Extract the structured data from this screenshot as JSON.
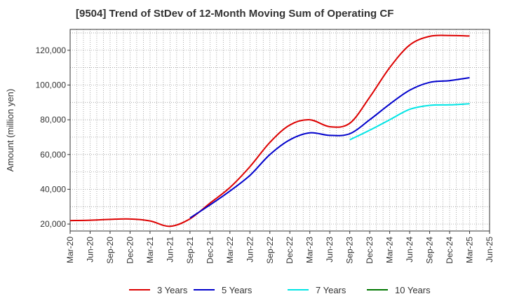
{
  "chart_data": {
    "type": "line",
    "title": "[9504]  Trend of StDev of 12-Month Moving Sum of Operating CF",
    "xlabel": "",
    "ylabel": "Amount (million yen)",
    "ylim": [
      16000,
      132000
    ],
    "yticks": [
      20000,
      40000,
      60000,
      80000,
      100000,
      120000
    ],
    "ytick_labels": [
      "20,000",
      "40,000",
      "60,000",
      "80,000",
      "100,000",
      "120,000"
    ],
    "x": [
      "Mar-20",
      "Jun-20",
      "Sep-20",
      "Dec-20",
      "Mar-21",
      "Jun-21",
      "Sep-21",
      "Dec-21",
      "Mar-22",
      "Jun-22",
      "Sep-22",
      "Dec-22",
      "Mar-23",
      "Jun-23",
      "Sep-23",
      "Dec-23",
      "Mar-24",
      "Jun-24",
      "Sep-24",
      "Dec-24",
      "Mar-25",
      "Jun-25"
    ],
    "grid": true,
    "legend_position": "bottom",
    "series": [
      {
        "name": "3 Years",
        "color": "#dd0000",
        "values": [
          22000,
          22200,
          22700,
          22900,
          21800,
          18700,
          23000,
          32000,
          41000,
          53000,
          67000,
          77000,
          80000,
          76000,
          78000,
          93000,
          110000,
          123000,
          128000,
          128500,
          128200,
          null
        ]
      },
      {
        "name": "5 Years",
        "color": "#0000cc",
        "values": [
          null,
          null,
          null,
          null,
          null,
          null,
          23500,
          31000,
          39000,
          48000,
          60000,
          68500,
          72500,
          71000,
          72000,
          80000,
          89000,
          97000,
          101500,
          102500,
          104200,
          null
        ]
      },
      {
        "name": "7 Years",
        "color": "#00e5e5",
        "values": [
          null,
          null,
          null,
          null,
          null,
          null,
          null,
          null,
          null,
          null,
          null,
          null,
          null,
          null,
          68500,
          74000,
          80000,
          86000,
          88300,
          88600,
          89200,
          null
        ]
      },
      {
        "name": "10 Years",
        "color": "#007700",
        "values": [
          null,
          null,
          null,
          null,
          null,
          null,
          null,
          null,
          null,
          null,
          null,
          null,
          null,
          null,
          null,
          null,
          null,
          null,
          null,
          null,
          null,
          null
        ]
      }
    ]
  }
}
